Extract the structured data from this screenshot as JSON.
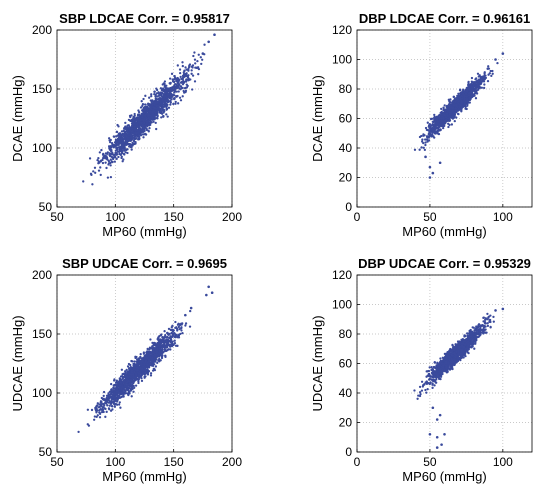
{
  "chart_data": [
    {
      "id": "p1",
      "type": "scatter",
      "title": "SBP LDCAE Corr. = 0.95817",
      "xlabel": "MP60 (mmHg)",
      "ylabel": "DCAE (mmHg)",
      "xlim": [
        50,
        200
      ],
      "ylim": [
        50,
        200
      ],
      "xticks": [
        50,
        100,
        150,
        200
      ],
      "yticks": [
        50,
        100,
        150,
        200
      ],
      "grid": "dotted",
      "point_color": "#3a4a9c",
      "x_range": [
        65,
        188
      ],
      "slope": 0.98,
      "intercept": 2,
      "noise": 6,
      "n": 1500,
      "outliers": [
        [
          175,
          180
        ],
        [
          180,
          190
        ],
        [
          185,
          196
        ],
        [
          150,
          152
        ],
        [
          160,
          161
        ],
        [
          170,
          168
        ]
      ]
    },
    {
      "id": "p2",
      "type": "scatter",
      "title": "DBP LDCAE Corr. = 0.96161",
      "xlabel": "MP60 (mmHg)",
      "ylabel": "DCAE (mmHg)",
      "xlim": [
        0,
        120
      ],
      "ylim": [
        0,
        120
      ],
      "xticks": [
        0,
        50,
        100
      ],
      "yticks": [
        0,
        20,
        40,
        60,
        80,
        100,
        120
      ],
      "grid": "dotted",
      "point_color": "#3a4a9c",
      "x_range": [
        35,
        100
      ],
      "slope": 0.95,
      "intercept": 4,
      "noise": 3,
      "n": 1400,
      "outliers": [
        [
          50,
          20
        ],
        [
          52,
          23
        ],
        [
          50,
          27
        ],
        [
          57,
          30
        ],
        [
          47,
          34
        ],
        [
          95,
          100
        ],
        [
          100,
          104
        ]
      ]
    },
    {
      "id": "p3",
      "type": "scatter",
      "title": "SBP UDCAE Corr. = 0.9695",
      "xlabel": "MP60 (mmHg)",
      "ylabel": "UDCAE (mmHg)",
      "xlim": [
        50,
        200
      ],
      "ylim": [
        50,
        200
      ],
      "xticks": [
        50,
        100,
        150,
        200
      ],
      "yticks": [
        50,
        100,
        150,
        200
      ],
      "grid": "dotted",
      "point_color": "#3a4a9c",
      "x_range": [
        65,
        175
      ],
      "slope": 0.98,
      "intercept": 2,
      "noise": 5,
      "n": 1500,
      "outliers": [
        [
          180,
          190
        ],
        [
          178,
          183
        ],
        [
          183,
          185
        ],
        [
          165,
          172
        ],
        [
          155,
          158
        ],
        [
          160,
          166
        ]
      ]
    },
    {
      "id": "p4",
      "type": "scatter",
      "title": "DBP UDCAE Corr. = 0.95329",
      "xlabel": "MP60 (mmHg)",
      "ylabel": "UDCAE (mmHg)",
      "xlim": [
        0,
        120
      ],
      "ylim": [
        0,
        120
      ],
      "xticks": [
        0,
        50,
        100
      ],
      "yticks": [
        0,
        20,
        40,
        60,
        80,
        100,
        120
      ],
      "grid": "dotted",
      "point_color": "#3a4a9c",
      "x_range": [
        35,
        100
      ],
      "slope": 0.95,
      "intercept": 2,
      "noise": 3,
      "n": 1400,
      "outliers": [
        [
          55,
          3
        ],
        [
          58,
          5
        ],
        [
          55,
          10
        ],
        [
          50,
          12
        ],
        [
          60,
          12
        ],
        [
          55,
          22
        ],
        [
          57,
          25
        ],
        [
          52,
          30
        ],
        [
          95,
          96
        ],
        [
          100,
          97
        ]
      ]
    }
  ]
}
